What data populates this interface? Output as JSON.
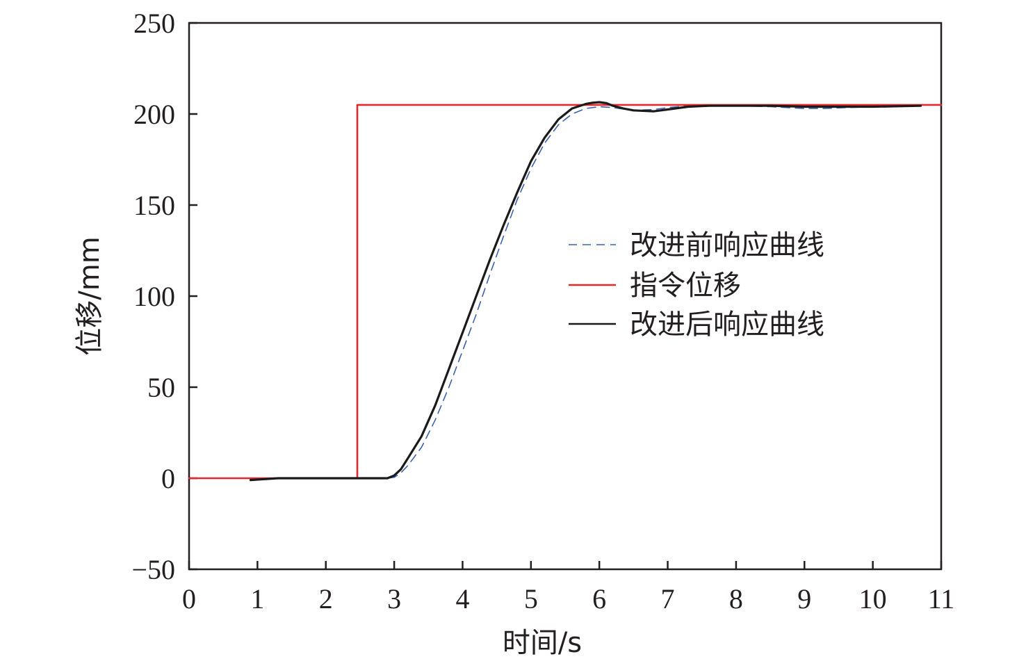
{
  "chart_data": {
    "type": "line",
    "xlabel": "时间/s",
    "ylabel": "位移/mm",
    "xlim": [
      0,
      11
    ],
    "ylim": [
      -50,
      250
    ],
    "xticks": [
      0,
      1,
      2,
      3,
      4,
      5,
      6,
      7,
      8,
      9,
      10,
      11
    ],
    "yticks": [
      -50,
      0,
      50,
      100,
      150,
      200,
      250
    ],
    "xtick_labels": [
      "0",
      "1",
      "2",
      "3",
      "4",
      "5",
      "6",
      "7",
      "8",
      "9",
      "10",
      "11"
    ],
    "ytick_labels": [
      "−50",
      "0",
      "50",
      "100",
      "150",
      "200",
      "250"
    ],
    "grid": false,
    "legend_position": "right",
    "series": [
      {
        "name": "改进前响应曲线",
        "color": "#3a62b0",
        "dash": "dashed",
        "x": [
          0.9,
          1.3,
          2.0,
          2.5,
          2.9,
          3.0,
          3.1,
          3.2,
          3.4,
          3.6,
          3.8,
          4.0,
          4.2,
          4.4,
          4.6,
          4.8,
          5.0,
          5.2,
          5.4,
          5.6,
          5.8,
          6.0,
          6.2,
          6.5,
          6.8,
          7.0,
          7.3,
          7.6,
          8.0,
          8.5,
          9.0,
          9.3,
          9.6,
          10.0,
          10.4,
          10.7
        ],
        "y": [
          -1,
          0,
          0,
          0,
          0,
          0.5,
          3,
          7,
          17,
          32,
          50,
          70,
          90,
          112,
          133,
          153,
          170,
          184,
          194,
          200,
          203,
          204,
          203.5,
          202,
          202.5,
          203.5,
          204.5,
          205,
          204.5,
          204,
          203,
          203,
          203.5,
          204,
          204.5,
          205
        ]
      },
      {
        "name": "指令位移",
        "color": "#e4282b",
        "dash": "solid",
        "x": [
          0,
          2.46,
          2.46,
          11
        ],
        "y": [
          0,
          0,
          205,
          205
        ]
      },
      {
        "name": "改进后响应曲线",
        "color": "#1a1a1a",
        "dash": "solid",
        "x": [
          0.9,
          1.3,
          2.0,
          2.5,
          2.9,
          3.0,
          3.1,
          3.2,
          3.4,
          3.6,
          3.8,
          4.0,
          4.2,
          4.4,
          4.6,
          4.8,
          5.0,
          5.2,
          5.4,
          5.6,
          5.8,
          5.9,
          6.0,
          6.1,
          6.2,
          6.35,
          6.5,
          6.8,
          7.0,
          7.3,
          7.6,
          8.0,
          8.5,
          9.0,
          9.5,
          10.0,
          10.7
        ],
        "y": [
          -1,
          0,
          0,
          0,
          0,
          1.5,
          5,
          11,
          23,
          40,
          60,
          80,
          100,
          120,
          139,
          157,
          174,
          187,
          197,
          203,
          205.5,
          206.2,
          206.5,
          206,
          204.5,
          203,
          202,
          201.5,
          202.5,
          204,
          204.5,
          204.5,
          204.5,
          204,
          204,
          204,
          204.5
        ]
      }
    ]
  }
}
